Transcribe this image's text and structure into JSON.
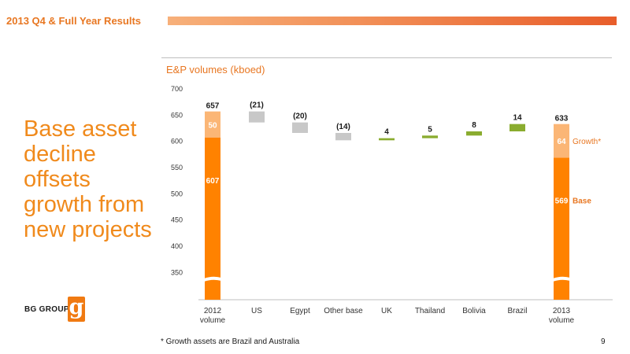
{
  "header": {
    "title": "2013 Q4 & Full Year Results"
  },
  "headline": "Base asset decline offsets growth from new projects",
  "logo": {
    "text": "BG GROUP",
    "mark": "g"
  },
  "footnote": "* Growth assets are Brazil and Australia",
  "page_number": "9",
  "colors": {
    "orange": "#ff8200",
    "light_orange": "#fbb676",
    "grey": "#c8c8c8",
    "green": "#8aac2f",
    "accent": "#e87722"
  },
  "chart_data": {
    "type": "waterfall",
    "title": "E&P volumes (kboed)",
    "ylim": [
      300,
      700
    ],
    "yticks": [
      350,
      400,
      450,
      500,
      550,
      600,
      650,
      700
    ],
    "axis_break": true,
    "categories": [
      "2012\nvolume",
      "US",
      "Egypt",
      "Other base",
      "UK",
      "Thailand",
      "Bolivia",
      "Brazil",
      "2013\nvolume"
    ],
    "totals": [
      {
        "category": "2012\nvolume",
        "total": 657,
        "base": 607,
        "growth": 50,
        "total_label": "657",
        "base_label": "607",
        "growth_label": "50"
      },
      {
        "category": "2013\nvolume",
        "total": 633,
        "base": 569,
        "growth": 64,
        "total_label": "633",
        "base_label": "569",
        "growth_label": "64"
      }
    ],
    "changes": [
      {
        "category": "US",
        "value": -21,
        "label": "(21)"
      },
      {
        "category": "Egypt",
        "value": -20,
        "label": "(20)"
      },
      {
        "category": "Other base",
        "value": -14,
        "label": "(14)"
      },
      {
        "category": "UK",
        "value": 4,
        "label": "4"
      },
      {
        "category": "Thailand",
        "value": 5,
        "label": "5"
      },
      {
        "category": "Bolivia",
        "value": 8,
        "label": "8"
      },
      {
        "category": "Brazil",
        "value": 14,
        "label": "14"
      }
    ],
    "series_labels": {
      "growth": "Growth*",
      "base": "Base"
    }
  }
}
